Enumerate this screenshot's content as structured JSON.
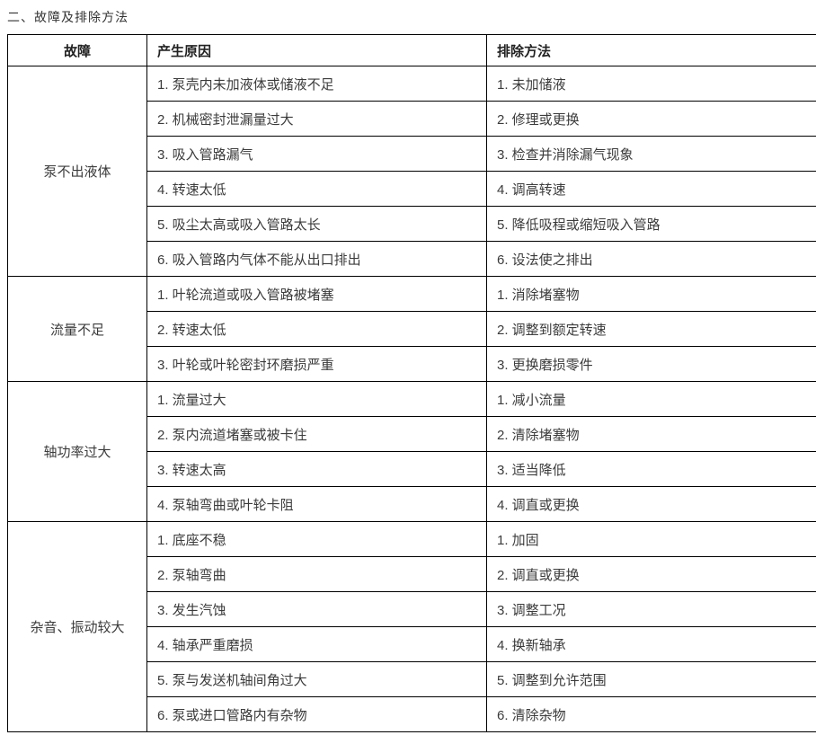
{
  "title": "二、故障及排除方法",
  "table": {
    "headers": [
      "故障",
      "产生原因",
      "排除方法"
    ],
    "sections": [
      {
        "fault": "泵不出液体",
        "rows": [
          {
            "cause": "1. 泵壳内未加液体或储液不足",
            "remedy": "1. 未加储液"
          },
          {
            "cause": "2. 机械密封泄漏量过大",
            "remedy": "2. 修理或更换"
          },
          {
            "cause": "3. 吸入管路漏气",
            "remedy": "3. 检查并消除漏气现象"
          },
          {
            "cause": "4. 转速太低",
            "remedy": "4. 调高转速"
          },
          {
            "cause": "5. 吸尘太高或吸入管路太长",
            "remedy": "5. 降低吸程或缩短吸入管路"
          },
          {
            "cause": "6. 吸入管路内气体不能从出口排出",
            "remedy": "6. 设法使之排出"
          }
        ]
      },
      {
        "fault": "流量不足",
        "rows": [
          {
            "cause": "1. 叶轮流道或吸入管路被堵塞",
            "remedy": "1. 消除堵塞物"
          },
          {
            "cause": "2. 转速太低",
            "remedy": "2. 调整到额定转速"
          },
          {
            "cause": "3. 叶轮或叶轮密封环磨损严重",
            "remedy": "3. 更换磨损零件"
          }
        ]
      },
      {
        "fault": "轴功率过大",
        "rows": [
          {
            "cause": "1. 流量过大",
            "remedy": "1. 减小流量"
          },
          {
            "cause": "2. 泵内流道堵塞或被卡住",
            "remedy": "2. 清除堵塞物"
          },
          {
            "cause": "3. 转速太高",
            "remedy": "3. 适当降低"
          },
          {
            "cause": "4. 泵轴弯曲或叶轮卡阻",
            "remedy": "4. 调直或更换"
          }
        ]
      },
      {
        "fault": "杂音、振动较大",
        "rows": [
          {
            "cause": "1. 底座不稳",
            "remedy": "1. 加固"
          },
          {
            "cause": "2. 泵轴弯曲",
            "remedy": "2. 调直或更换"
          },
          {
            "cause": "3. 发生汽蚀",
            "remedy": "3. 调整工况"
          },
          {
            "cause": "4. 轴承严重磨损",
            "remedy": "4. 换新轴承"
          },
          {
            "cause": "5. 泵与发送机轴间角过大",
            "remedy": "5. 调整到允许范围"
          },
          {
            "cause": "6. 泵或进口管路内有杂物",
            "remedy": "6. 清除杂物"
          }
        ]
      }
    ]
  }
}
